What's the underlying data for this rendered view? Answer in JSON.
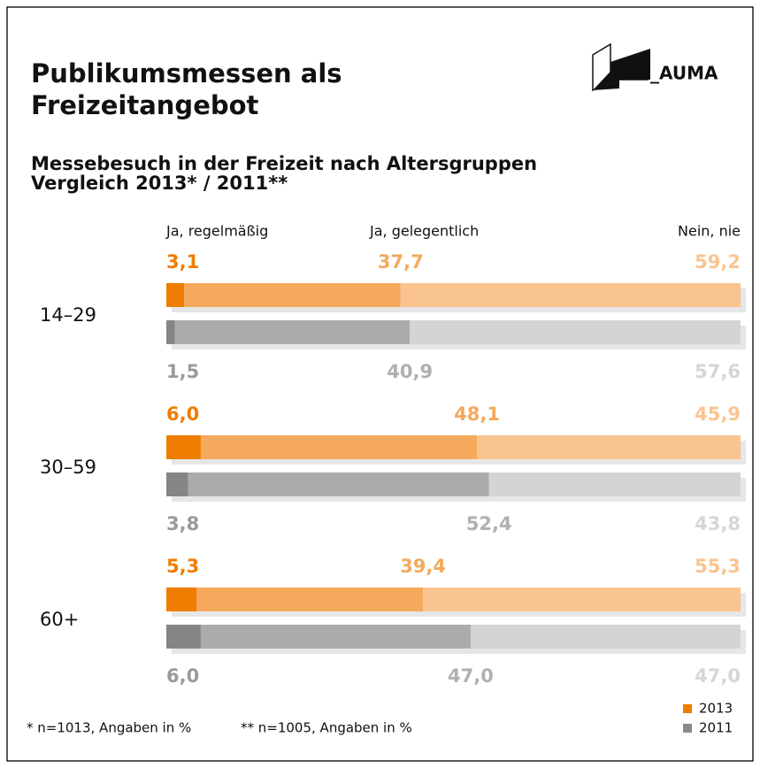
{
  "logo": "_AUMA",
  "chart_data": {
    "type": "bar",
    "orientation": "horizontal",
    "stacked": true,
    "title": "Publikumsmessen als\nFreizeitangebot",
    "subtitle": [
      "Messebesuch in der Freizeit nach Altersgruppen",
      "Vergleich 2013* / 2011**"
    ],
    "categories": [
      "14–29",
      "30–59",
      "60+"
    ],
    "segment_names": [
      "Ja, regelmäßig",
      "Ja, gelegentlich",
      "Nein, nie"
    ],
    "xlim": [
      0,
      100
    ],
    "series": [
      {
        "name": "2013",
        "color": "#ef7d00",
        "segments": [
          {
            "color": "#ef7d00",
            "label_color": "#ef7d00",
            "values": [
              3.1,
              6.0,
              5.3
            ],
            "value_labels": [
              "3,1",
              "6,0",
              "5,3"
            ]
          },
          {
            "color": "#f4a95c",
            "label_color": "#f4a95c",
            "values": [
              37.7,
              48.1,
              39.4
            ],
            "value_labels": [
              "37,7",
              "48,1",
              "39,4"
            ]
          },
          {
            "color": "#f9c490",
            "label_color": "#f9c490",
            "values": [
              59.2,
              45.9,
              55.3
            ],
            "value_labels": [
              "59,2",
              "45,9",
              "55,3"
            ]
          }
        ]
      },
      {
        "name": "2011",
        "color": "#8a8a8a",
        "segments": [
          {
            "color": "#858585",
            "label_color": "#9a9a9a",
            "values": [
              1.5,
              3.8,
              6.0
            ],
            "value_labels": [
              "1,5",
              "3,8",
              "6,0"
            ]
          },
          {
            "color": "#ababab",
            "label_color": "#b0b0b0",
            "values": [
              40.9,
              52.4,
              47.0
            ],
            "value_labels": [
              "40,9",
              "52,4",
              "47,0"
            ]
          },
          {
            "color": "#d4d4d4",
            "label_color": "#d6d6d6",
            "values": [
              57.6,
              43.8,
              47.0
            ],
            "value_labels": [
              "57,6",
              "43,8",
              "47,0"
            ]
          }
        ]
      }
    ],
    "footnotes": [
      "* n=1013, Angaben in %",
      "** n=1005, Angaben in %"
    ]
  }
}
